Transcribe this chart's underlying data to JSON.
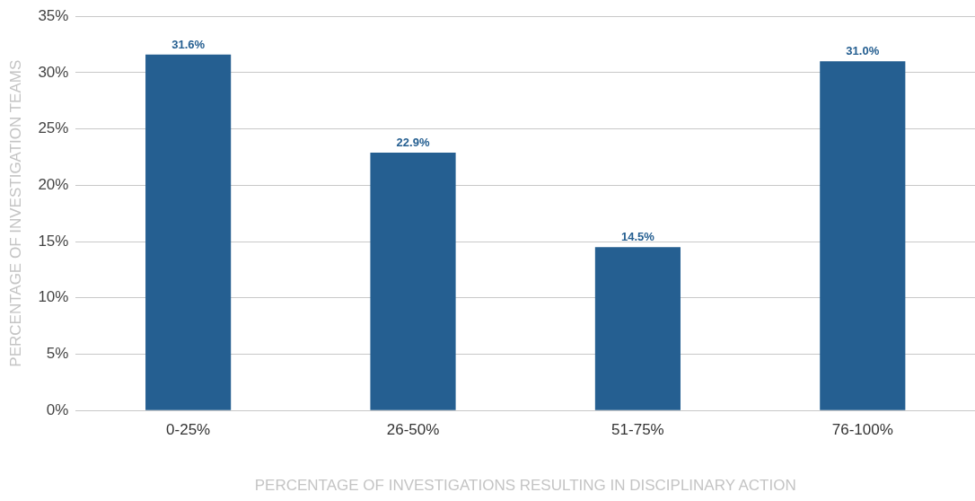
{
  "chart_data": {
    "type": "bar",
    "xlabel": "PERCENTAGE OF INVESTIGATIONS RESULTING IN DISCIPLINARY ACTION",
    "ylabel": "PERCENTAGE OF INVESTIGATION TEAMS",
    "categories": [
      "0-25%",
      "26-50%",
      "51-75%",
      "76-100%"
    ],
    "values": [
      31.6,
      22.9,
      14.5,
      31.0
    ],
    "value_labels": [
      "31.6%",
      "22.9%",
      "14.5%",
      "31.0%"
    ],
    "color": "#255f91",
    "ylim": [
      0,
      35
    ],
    "yticks": [
      {
        "value": 0,
        "label": "0%"
      },
      {
        "value": 5,
        "label": "5%"
      },
      {
        "value": 10,
        "label": "10%"
      },
      {
        "value": 15,
        "label": "15%"
      },
      {
        "value": 20,
        "label": "20%"
      },
      {
        "value": 25,
        "label": "25%"
      },
      {
        "value": 30,
        "label": "30%"
      },
      {
        "value": 35,
        "label": "35%"
      }
    ],
    "grid": "y",
    "legend": false
  }
}
